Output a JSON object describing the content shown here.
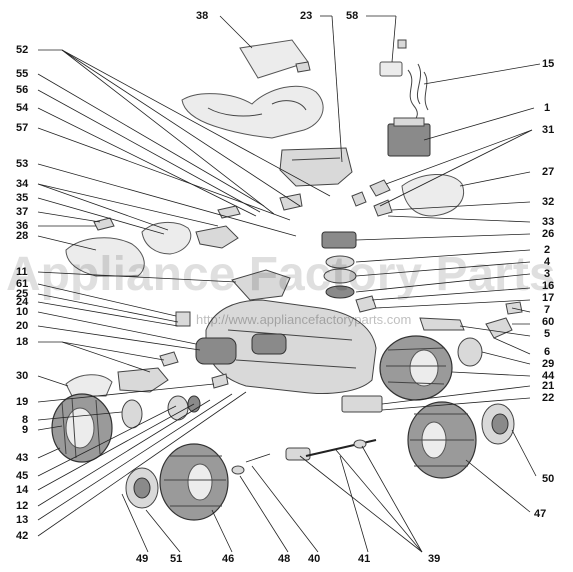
{
  "diagram": {
    "callouts": {
      "c1": "1",
      "c2": "2",
      "c3": "3",
      "c4": "4",
      "c5": "5",
      "c6": "6",
      "c7": "7",
      "c8": "8",
      "c9": "9",
      "c10": "10",
      "c11": "11",
      "c12": "12",
      "c13": "13",
      "c14": "14",
      "c15": "15",
      "c16": "16",
      "c17": "17",
      "c18": "18",
      "c19": "19",
      "c20": "20",
      "c21": "21",
      "c22": "22",
      "c23": "23",
      "c24": "24",
      "c25": "25",
      "c26": "26",
      "c27": "27",
      "c28": "28",
      "c29": "29",
      "c30": "30",
      "c31": "31",
      "c32": "32",
      "c33": "33",
      "c34": "34",
      "c35": "35",
      "c36": "36",
      "c37": "37",
      "c38": "38",
      "c39": "39",
      "c40": "40",
      "c41": "41",
      "c42": "42",
      "c43": "43",
      "c44": "44",
      "c45": "45",
      "c46": "46",
      "c47": "47",
      "c48": "48",
      "c49": "49",
      "c50": "50",
      "c51": "51",
      "c52": "52",
      "c53": "53",
      "c54": "54",
      "c55": "55",
      "c56": "56",
      "c57": "57",
      "c58": "58",
      "c60": "60",
      "c61": "61"
    },
    "watermark": {
      "text": "Appliance Factory Parts",
      "url": "http://www.appliancefactoryparts.com"
    }
  }
}
